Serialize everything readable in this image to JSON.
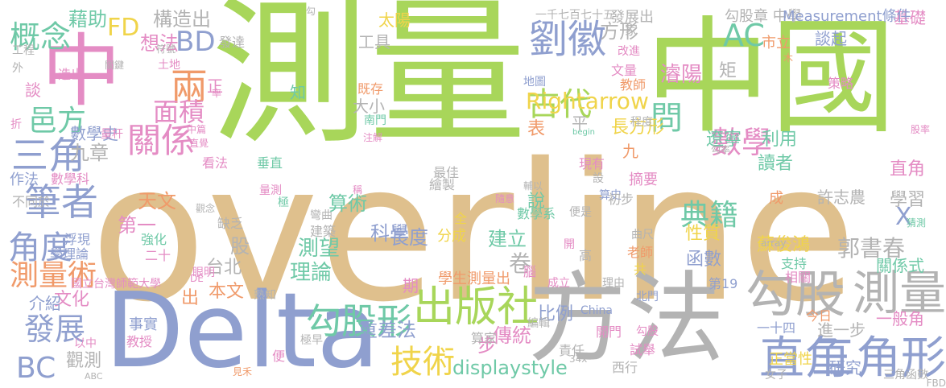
{
  "palette": {
    "green": "#a8d65a",
    "tan": "#dfc08d",
    "blue": "#8f9fcf",
    "pink": "#e48cc4",
    "teal": "#6fc9a7",
    "orange": "#f09a6a",
    "gray": "#b3b3b3",
    "yellow": "#f0d44a"
  },
  "words": [
    {
      "text": "overline",
      "color": "tan"
    },
    {
      "text": "測量",
      "color": "green"
    },
    {
      "text": "中國",
      "color": "green"
    },
    {
      "text": "Delta",
      "color": "blue"
    },
    {
      "text": "方法",
      "color": "gray"
    },
    {
      "text": "中",
      "color": "pink"
    },
    {
      "text": "勾股",
      "color": "gray"
    },
    {
      "text": "測量",
      "color": "gray"
    },
    {
      "text": "直角",
      "color": "blue"
    },
    {
      "text": "三角形",
      "color": "blue"
    },
    {
      "text": "出版社",
      "color": "green"
    },
    {
      "text": "勾股形",
      "color": "teal"
    },
    {
      "text": "技術",
      "color": "yellow"
    },
    {
      "text": "劉徽",
      "color": "blue"
    },
    {
      "text": "古代",
      "color": "green"
    },
    {
      "text": "數學",
      "color": "pink"
    },
    {
      "text": "三角",
      "color": "blue"
    },
    {
      "text": "筆者",
      "color": "blue"
    },
    {
      "text": "測量術",
      "color": "orange"
    },
    {
      "text": "角度",
      "color": "blue"
    },
    {
      "text": "發展",
      "color": "blue"
    },
    {
      "text": "關係",
      "color": "pink"
    },
    {
      "text": "邑方",
      "color": "teal"
    },
    {
      "text": "概念",
      "color": "teal"
    },
    {
      "text": "BD",
      "color": "blue"
    },
    {
      "text": "AC",
      "color": "teal"
    },
    {
      "text": "FD",
      "color": "yellow"
    },
    {
      "text": "BC",
      "color": "blue"
    },
    {
      "text": "Rightarrow",
      "color": "yellow"
    },
    {
      "text": "郭書春",
      "color": "gray"
    },
    {
      "text": "兩",
      "color": "orange"
    },
    {
      "text": "面積",
      "color": "pink"
    },
    {
      "text": "藉助",
      "color": "teal"
    },
    {
      "text": "構造出",
      "color": "gray"
    },
    {
      "text": "方形",
      "color": "gray"
    },
    {
      "text": "問",
      "color": "teal"
    },
    {
      "text": "X",
      "color": "blue"
    },
    {
      "text": "典籍",
      "color": "teal"
    },
    {
      "text": "理論",
      "color": "teal"
    },
    {
      "text": "測望",
      "color": "teal"
    },
    {
      "text": "displaystyle",
      "color": "teal"
    },
    {
      "text": "重差法",
      "color": "blue"
    },
    {
      "text": "傳統",
      "color": "pink"
    },
    {
      "text": "卷",
      "color": "gray"
    },
    {
      "text": "長度",
      "color": "blue"
    },
    {
      "text": "建立",
      "color": "teal"
    },
    {
      "text": "第一",
      "color": "pink"
    },
    {
      "text": "天文",
      "color": "orange"
    },
    {
      "text": "算術",
      "color": "teal"
    },
    {
      "text": "科學",
      "color": "blue"
    },
    {
      "text": "數學史",
      "color": "blue"
    },
    {
      "text": "九章",
      "color": "gray"
    },
    {
      "text": "大小",
      "color": "gray"
    },
    {
      "text": "工具",
      "color": "gray"
    },
    {
      "text": "想法",
      "color": "pink"
    },
    {
      "text": "長方形",
      "color": "yellow"
    },
    {
      "text": "遼寧",
      "color": "teal"
    },
    {
      "text": "利用",
      "color": "teal"
    },
    {
      "text": "直角",
      "color": "pink"
    },
    {
      "text": "學習",
      "color": "gray"
    },
    {
      "text": "讀者",
      "color": "teal"
    },
    {
      "text": "函數",
      "color": "blue"
    },
    {
      "text": "性質",
      "color": "yellow"
    },
    {
      "text": "文化",
      "color": "pink"
    },
    {
      "text": "介紹",
      "color": "blue"
    },
    {
      "text": "本文",
      "color": "orange"
    },
    {
      "text": "台北",
      "color": "gray"
    },
    {
      "text": "觀測",
      "color": "gray"
    },
    {
      "text": "步",
      "color": "pink"
    },
    {
      "text": "比例",
      "color": "blue"
    },
    {
      "text": "進一步",
      "color": "gray"
    },
    {
      "text": "研究",
      "color": "blue"
    },
    {
      "text": "一般角",
      "color": "pink"
    },
    {
      "text": "關係式",
      "color": "teal"
    },
    {
      "text": "表",
      "color": "orange"
    },
    {
      "text": "太陽",
      "color": "yellow"
    },
    {
      "text": "發展出",
      "color": "gray"
    },
    {
      "text": "基礎",
      "color": "pink"
    },
    {
      "text": "勾股章 中學",
      "color": "gray"
    },
    {
      "text": "Measurement條件",
      "color": "blue"
    },
    {
      "text": "一千七百七十五",
      "color": "gray"
    },
    {
      "text": "文量",
      "color": "pink"
    },
    {
      "text": "教師",
      "color": "orange"
    },
    {
      "text": "濬陽",
      "color": "pink"
    },
    {
      "text": "矩",
      "color": "gray"
    },
    {
      "text": "市立",
      "color": "orange"
    },
    {
      "text": "談起",
      "color": "blue"
    },
    {
      "text": "學生測量出",
      "color": "orange"
    },
    {
      "text": "分成",
      "color": "yellow"
    },
    {
      "text": "蘇俊鴻",
      "color": "yellow"
    },
    {
      "text": "許志農",
      "color": "gray"
    },
    {
      "text": "今日",
      "color": "orange"
    },
    {
      "text": "作法",
      "color": "blue"
    },
    {
      "text": "數學科",
      "color": "pink"
    },
    {
      "text": "浮現",
      "color": "blue"
    },
    {
      "text": "學理論",
      "color": "blue"
    },
    {
      "text": "國立台灣師範大學",
      "color": "pink"
    },
    {
      "text": "事實",
      "color": "blue"
    },
    {
      "text": "教授",
      "color": "pink"
    },
    {
      "text": "以中",
      "color": "pink"
    },
    {
      "text": "ABC",
      "color": "gray"
    },
    {
      "text": "China",
      "color": "blue"
    },
    {
      "text": "正當性",
      "color": "yellow"
    },
    {
      "text": "女子",
      "color": "gray"
    },
    {
      "text": "三角函數",
      "color": "gray"
    },
    {
      "text": "第19",
      "color": "blue"
    },
    {
      "text": "北門",
      "color": "blue"
    },
    {
      "text": "編輯",
      "color": "gray"
    },
    {
      "text": "算家",
      "color": "gray"
    },
    {
      "text": "西行",
      "color": "gray"
    },
    {
      "text": "責任",
      "color": "gray"
    },
    {
      "text": "試舉",
      "color": "pink"
    },
    {
      "text": "勾股",
      "color": "pink"
    },
    {
      "text": "一十四",
      "color": "blue"
    },
    {
      "text": "強化",
      "color": "teal"
    },
    {
      "text": "二十",
      "color": "pink"
    },
    {
      "text": "缺乏",
      "color": "gray"
    },
    {
      "text": "股",
      "color": "gray"
    },
    {
      "text": "眼明",
      "color": "pink"
    },
    {
      "text": "熟知",
      "color": "gray"
    },
    {
      "text": "出",
      "color": "orange"
    },
    {
      "text": "期",
      "color": "pink"
    },
    {
      "text": "成立",
      "color": "pink"
    },
    {
      "text": "理由",
      "color": "gray"
    },
    {
      "text": "支持",
      "color": "teal"
    },
    {
      "text": "相關",
      "color": "pink"
    },
    {
      "text": "程度",
      "color": "gray"
    },
    {
      "text": "平",
      "color": "gray"
    },
    {
      "text": "九",
      "color": "orange"
    },
    {
      "text": "勾率",
      "color": "gray"
    },
    {
      "text": "南門",
      "color": "teal"
    },
    {
      "text": "地圖",
      "color": "blue"
    },
    {
      "text": "改進",
      "color": "pink"
    },
    {
      "text": "策略",
      "color": "pink"
    },
    {
      "text": "現有",
      "color": "pink"
    },
    {
      "text": "摘要",
      "color": "pink"
    },
    {
      "text": "算史",
      "color": "blue"
    },
    {
      "text": "初步",
      "color": "gray"
    },
    {
      "text": "老師",
      "color": "orange"
    },
    {
      "text": "曲尺",
      "color": "gray"
    },
    {
      "text": "數學系",
      "color": "teal"
    },
    {
      "text": "便是",
      "color": "gray"
    },
    {
      "text": "高",
      "color": "gray"
    },
    {
      "text": "共",
      "color": "yellow"
    },
    {
      "text": "成",
      "color": "orange"
    },
    {
      "text": "繪製",
      "color": "gray"
    },
    {
      "text": "最佳",
      "color": "gray"
    },
    {
      "text": "建築",
      "color": "gray"
    },
    {
      "text": "彎曲",
      "color": "gray"
    },
    {
      "text": "極",
      "color": "teal"
    },
    {
      "text": "量測",
      "color": "pink"
    },
    {
      "text": "垂直",
      "color": "teal"
    },
    {
      "text": "看法",
      "color": "pink"
    },
    {
      "text": "量杆",
      "color": "pink"
    },
    {
      "text": "不同於",
      "color": "gray"
    },
    {
      "text": "發達",
      "color": "gray"
    },
    {
      "text": "土地",
      "color": "pink"
    },
    {
      "text": "符號",
      "color": "gray"
    },
    {
      "text": "工程",
      "color": "gray"
    },
    {
      "text": "既存",
      "color": "orange"
    },
    {
      "text": "家",
      "color": "gray"
    },
    {
      "text": "正",
      "color": "pink"
    },
    {
      "text": "說",
      "color": "teal"
    },
    {
      "text": "全",
      "color": "yellow"
    },
    {
      "text": "腦",
      "color": "pink"
    },
    {
      "text": "開門",
      "color": "pink"
    },
    {
      "text": "便",
      "color": "pink"
    },
    {
      "text": "極早",
      "color": "gray"
    },
    {
      "text": "注解",
      "color": "pink"
    },
    {
      "text": "中篇",
      "color": "pink"
    },
    {
      "text": "array",
      "color": "gray"
    },
    {
      "text": "FBD",
      "color": "gray"
    },
    {
      "text": "begin",
      "color": "teal"
    },
    {
      "text": "34x",
      "color": "gray"
    },
    {
      "text": "談",
      "color": "pink"
    },
    {
      "text": "折",
      "color": "pink"
    },
    {
      "text": "外",
      "color": "gray"
    },
    {
      "text": "勾",
      "color": "gray"
    },
    {
      "text": "木",
      "color": "orange"
    },
    {
      "text": "造出",
      "color": "pink"
    },
    {
      "text": "關鍵",
      "color": "gray"
    },
    {
      "text": "知",
      "color": "teal"
    },
    {
      "text": "率",
      "color": "pink"
    },
    {
      "text": "稱",
      "color": "pink"
    },
    {
      "text": "直覺",
      "color": "pink"
    },
    {
      "text": "猜測",
      "color": "teal"
    },
    {
      "text": "股率",
      "color": "pink"
    },
    {
      "text": "觀念",
      "color": "gray"
    },
    {
      "text": "DE",
      "color": "pink"
    },
    {
      "text": "隨意",
      "color": "pink"
    },
    {
      "text": "見禾",
      "color": "orange"
    },
    {
      "text": "輔以",
      "color": "gray"
    },
    {
      "text": "設",
      "color": "gray"
    },
    {
      "text": "開",
      "color": "pink"
    },
    {
      "text": "例",
      "color": "pink"
    }
  ]
}
